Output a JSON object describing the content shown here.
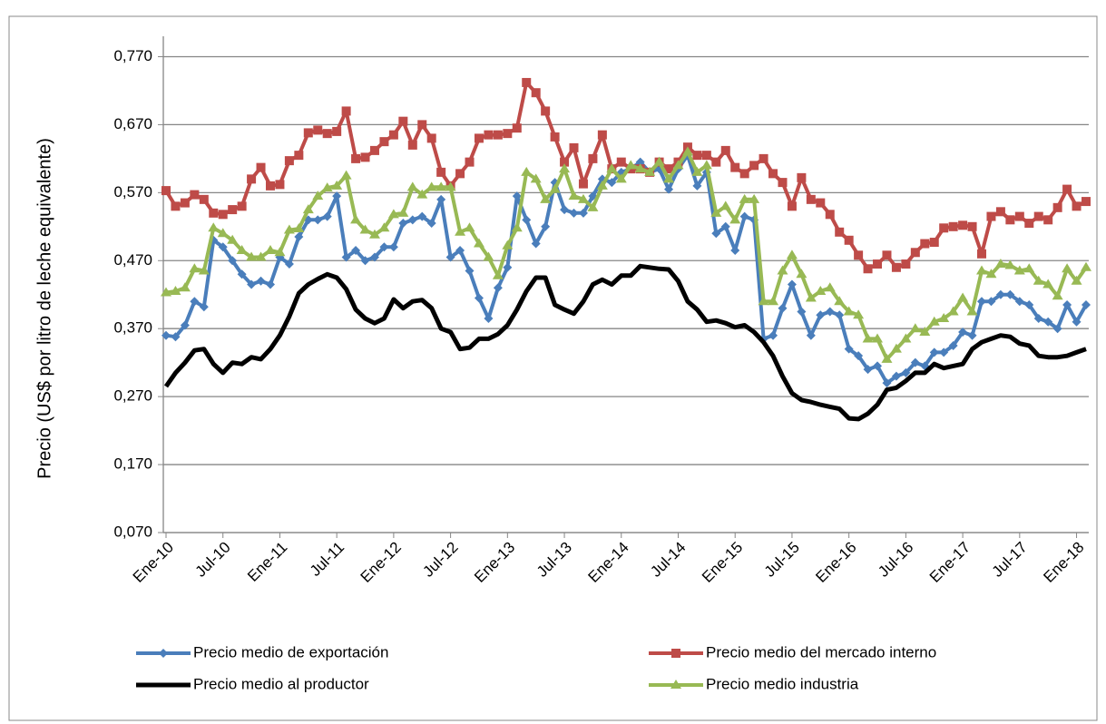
{
  "chart_data": {
    "type": "line",
    "ylabel": "Precio (US$ por litro de leche equivalente)",
    "categories": [
      "Ene-10",
      null,
      null,
      null,
      null,
      null,
      "Jul-10",
      null,
      null,
      null,
      null,
      null,
      "Ene-11",
      null,
      null,
      null,
      null,
      null,
      "Jul-11",
      null,
      null,
      null,
      null,
      null,
      "Ene-12",
      null,
      null,
      null,
      null,
      null,
      "Jul-12",
      null,
      null,
      null,
      null,
      null,
      "Ene-13",
      null,
      null,
      null,
      null,
      null,
      "Jul-13",
      null,
      null,
      null,
      null,
      null,
      "Ene-14",
      null,
      null,
      null,
      null,
      null,
      "Jul-14",
      null,
      null,
      null,
      null,
      null,
      "Ene-15",
      null,
      null,
      null,
      null,
      null,
      "Jul-15",
      null,
      null,
      null,
      null,
      null,
      "Ene-16",
      null,
      null,
      null,
      null,
      null,
      "Jul-16",
      null,
      null,
      null,
      null,
      null,
      "Ene-17",
      null,
      null,
      null,
      null,
      null,
      "Jul-17",
      null,
      null,
      null,
      null,
      null,
      "Ene-18",
      null
    ],
    "ylim": [
      0.07,
      0.8
    ],
    "yticks": [
      {
        "value": 0.07,
        "label": "0,070"
      },
      {
        "value": 0.17,
        "label": "0,170"
      },
      {
        "value": 0.27,
        "label": "0,270"
      },
      {
        "value": 0.37,
        "label": "0,370"
      },
      {
        "value": 0.47,
        "label": "0,470"
      },
      {
        "value": 0.57,
        "label": "0,570"
      },
      {
        "value": 0.67,
        "label": "0,670"
      },
      {
        "value": 0.77,
        "label": "0,770"
      }
    ],
    "grid": true,
    "legend": "bottom",
    "series": [
      {
        "name": "Precio medio de exportación",
        "color": "#4a7ebb",
        "marker": "diamond",
        "values": [
          0.36,
          0.358,
          0.375,
          0.41,
          0.402,
          0.5,
          0.49,
          0.47,
          0.45,
          0.435,
          0.44,
          0.435,
          0.475,
          0.465,
          0.505,
          0.53,
          0.53,
          0.535,
          0.565,
          0.475,
          0.485,
          0.47,
          0.475,
          0.49,
          0.49,
          0.525,
          0.53,
          0.535,
          0.525,
          0.56,
          0.475,
          0.485,
          0.455,
          0.415,
          0.385,
          0.43,
          0.46,
          0.565,
          0.53,
          0.495,
          0.52,
          0.585,
          0.545,
          0.54,
          0.54,
          0.565,
          0.59,
          0.585,
          0.6,
          0.605,
          0.615,
          0.6,
          0.605,
          0.575,
          0.605,
          0.625,
          0.58,
          0.6,
          0.51,
          0.52,
          0.485,
          0.535,
          0.53,
          0.355,
          0.36,
          0.4,
          0.435,
          0.395,
          0.36,
          0.39,
          0.395,
          0.39,
          0.34,
          0.33,
          0.31,
          0.315,
          0.29,
          0.3,
          0.305,
          0.32,
          0.315,
          0.335,
          0.335,
          0.345,
          0.365,
          0.36,
          0.41,
          0.41,
          0.42,
          0.42,
          0.41,
          0.405,
          0.385,
          0.38,
          0.37,
          0.405,
          0.38,
          0.405
        ]
      },
      {
        "name": "Precio medio del mercado interno",
        "color": "#be4b48",
        "marker": "square",
        "values": [
          0.573,
          0.55,
          0.555,
          0.567,
          0.56,
          0.54,
          0.538,
          0.545,
          0.55,
          0.59,
          0.607,
          0.58,
          0.582,
          0.617,
          0.625,
          0.658,
          0.662,
          0.657,
          0.66,
          0.69,
          0.62,
          0.622,
          0.632,
          0.645,
          0.655,
          0.675,
          0.64,
          0.67,
          0.65,
          0.6,
          0.58,
          0.598,
          0.615,
          0.65,
          0.655,
          0.655,
          0.657,
          0.665,
          0.732,
          0.717,
          0.69,
          0.652,
          0.615,
          0.636,
          0.583,
          0.62,
          0.655,
          0.605,
          0.615,
          0.605,
          0.605,
          0.6,
          0.615,
          0.605,
          0.615,
          0.637,
          0.625,
          0.625,
          0.615,
          0.632,
          0.607,
          0.598,
          0.61,
          0.62,
          0.598,
          0.585,
          0.55,
          0.592,
          0.56,
          0.555,
          0.538,
          0.512,
          0.5,
          0.478,
          0.458,
          0.465,
          0.478,
          0.46,
          0.465,
          0.482,
          0.495,
          0.497,
          0.518,
          0.52,
          0.522,
          0.52,
          0.48,
          0.535,
          0.542,
          0.53,
          0.535,
          0.525,
          0.535,
          0.53,
          0.548,
          0.575,
          0.55,
          0.557
        ]
      },
      {
        "name": "Precio medio al productor",
        "color": "#000000",
        "marker": "none",
        "values": [
          0.285,
          0.305,
          0.32,
          0.338,
          0.34,
          0.318,
          0.305,
          0.32,
          0.318,
          0.328,
          0.325,
          0.34,
          0.36,
          0.388,
          0.422,
          0.435,
          0.443,
          0.45,
          0.445,
          0.428,
          0.398,
          0.385,
          0.378,
          0.385,
          0.413,
          0.4,
          0.41,
          0.412,
          0.4,
          0.37,
          0.365,
          0.34,
          0.342,
          0.355,
          0.355,
          0.362,
          0.375,
          0.398,
          0.425,
          0.445,
          0.445,
          0.405,
          0.398,
          0.392,
          0.41,
          0.435,
          0.442,
          0.435,
          0.448,
          0.448,
          0.462,
          0.46,
          0.458,
          0.457,
          0.44,
          0.41,
          0.398,
          0.38,
          0.382,
          0.378,
          0.372,
          0.375,
          0.365,
          0.35,
          0.33,
          0.3,
          0.275,
          0.265,
          0.262,
          0.258,
          0.255,
          0.252,
          0.238,
          0.237,
          0.245,
          0.258,
          0.28,
          0.283,
          0.293,
          0.305,
          0.305,
          0.318,
          0.312,
          0.315,
          0.318,
          0.34,
          0.35,
          0.355,
          0.36,
          0.358,
          0.348,
          0.345,
          0.33,
          0.328,
          0.328,
          0.33,
          0.335,
          0.34
        ]
      },
      {
        "name": "Precio medio industria",
        "color": "#98b954",
        "marker": "triangle",
        "values": [
          0.423,
          0.425,
          0.43,
          0.458,
          0.455,
          0.518,
          0.51,
          0.5,
          0.485,
          0.475,
          0.475,
          0.485,
          0.482,
          0.515,
          0.517,
          0.545,
          0.565,
          0.577,
          0.58,
          0.595,
          0.53,
          0.515,
          0.508,
          0.518,
          0.538,
          0.54,
          0.578,
          0.567,
          0.578,
          0.578,
          0.578,
          0.512,
          0.518,
          0.495,
          0.475,
          0.448,
          0.492,
          0.518,
          0.6,
          0.59,
          0.56,
          0.575,
          0.605,
          0.565,
          0.56,
          0.548,
          0.58,
          0.605,
          0.59,
          0.61,
          0.605,
          0.6,
          0.615,
          0.59,
          0.61,
          0.63,
          0.6,
          0.61,
          0.54,
          0.55,
          0.53,
          0.56,
          0.56,
          0.41,
          0.41,
          0.455,
          0.478,
          0.45,
          0.415,
          0.425,
          0.43,
          0.41,
          0.395,
          0.39,
          0.355,
          0.355,
          0.325,
          0.34,
          0.355,
          0.37,
          0.365,
          0.38,
          0.385,
          0.395,
          0.415,
          0.395,
          0.455,
          0.45,
          0.465,
          0.463,
          0.455,
          0.458,
          0.44,
          0.435,
          0.418,
          0.458,
          0.44,
          0.46
        ]
      }
    ]
  }
}
